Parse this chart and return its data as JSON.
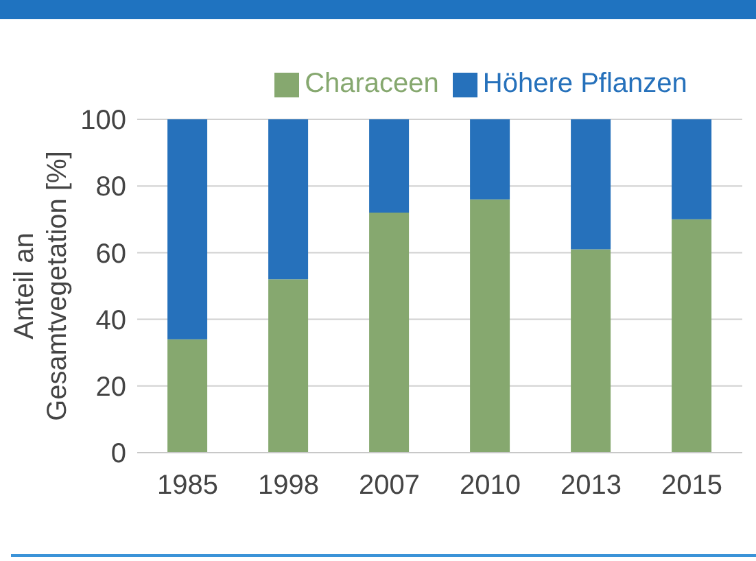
{
  "chart_data": {
    "type": "bar",
    "stacked": true,
    "categories": [
      "1985",
      "1998",
      "2007",
      "2010",
      "2013",
      "2015"
    ],
    "series": [
      {
        "name": "Characeen",
        "color": "#86a86f",
        "values": [
          34,
          52,
          72,
          76,
          61,
          70
        ]
      },
      {
        "name": "Höhere Pflanzen",
        "color": "#2671bb",
        "values": [
          66,
          48,
          28,
          24,
          39,
          30
        ]
      }
    ],
    "ylabel": "Anteil an Gesamtvegetation [%]",
    "ylim": [
      0,
      100
    ],
    "yticks": [
      0,
      20,
      40,
      60,
      80,
      100
    ],
    "grid": "y",
    "legend": "top"
  }
}
